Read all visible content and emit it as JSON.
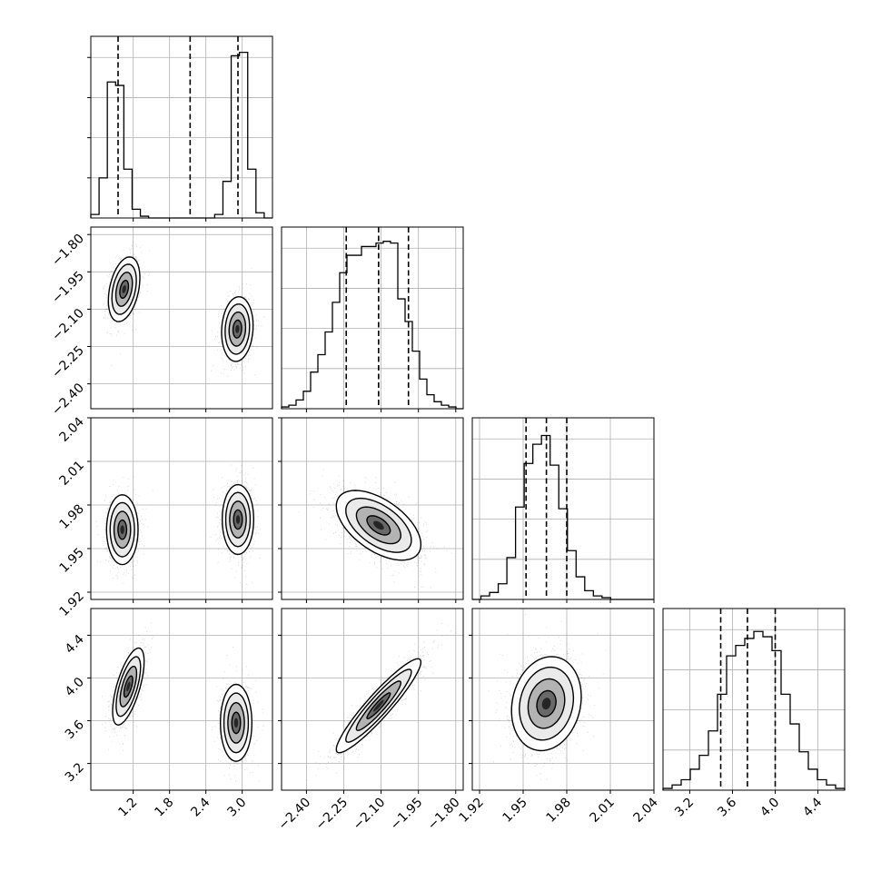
{
  "chart_data": {
    "type": "corner",
    "parameters": [
      {
        "label": "",
        "range": [
          0.5,
          3.5
        ],
        "ticks": [
          "1.2",
          "1.8",
          "2.4",
          "3.0"
        ],
        "quantiles": [
          0.95,
          2.14,
          2.93
        ],
        "hist": [
          0.02,
          0.23,
          0.78,
          0.76,
          0.28,
          0.05,
          0.01,
          0.0,
          0.0,
          0.0,
          0.0,
          0.0,
          0.0,
          0.0,
          0.0,
          0.02,
          0.21,
          0.93,
          0.95,
          0.28,
          0.03,
          0.0
        ],
        "hist_max": 1.0
      },
      {
        "label": "",
        "range": [
          -2.5,
          -1.77
        ],
        "ticks": [
          "−2.40",
          "−2.25",
          "−2.10",
          "−1.95",
          "−1.80"
        ],
        "ticks_left": [
          "−1.80",
          "−1.95",
          "−2.10",
          "−2.25",
          "−2.40"
        ],
        "quantiles": [
          -2.24,
          -2.11,
          -1.99
        ],
        "hist": [
          0.01,
          0.02,
          0.05,
          0.1,
          0.21,
          0.31,
          0.44,
          0.61,
          0.78,
          0.88,
          0.88,
          0.93,
          0.93,
          0.95,
          0.96,
          0.95,
          0.63,
          0.5,
          0.33,
          0.17,
          0.08,
          0.04,
          0.02,
          0.01,
          0.0
        ],
        "hist_max": 1.0
      },
      {
        "label": "",
        "range": [
          1.915,
          2.04
        ],
        "ticks": [
          "1.92",
          "1.95",
          "1.98",
          "2.01",
          "2.04"
        ],
        "ticks_left": [
          "2.04",
          "2.01",
          "1.98",
          "1.95",
          "1.92"
        ],
        "quantiles": [
          1.952,
          1.966,
          1.98
        ],
        "hist": [
          0.0,
          0.02,
          0.04,
          0.09,
          0.24,
          0.53,
          0.78,
          0.89,
          0.94,
          0.77,
          0.52,
          0.28,
          0.13,
          0.05,
          0.02,
          0.01,
          0.0,
          0.0,
          0.0,
          0.0,
          0.0
        ],
        "hist_max": 1.0
      },
      {
        "label": "",
        "range": [
          2.95,
          4.65
        ],
        "ticks": [
          "3.2",
          "3.6",
          "4.0",
          "4.4"
        ],
        "ticks_left": [
          "4.4",
          "4.0",
          "3.6",
          "3.2"
        ],
        "quantiles": [
          3.49,
          3.74,
          4.0
        ],
        "hist": [
          0.01,
          0.03,
          0.06,
          0.12,
          0.2,
          0.34,
          0.55,
          0.77,
          0.83,
          0.87,
          0.91,
          0.88,
          0.8,
          0.55,
          0.38,
          0.22,
          0.12,
          0.06,
          0.03,
          0.01
        ],
        "hist_max": 1.0
      }
    ],
    "blobs": {
      "1_0": [
        {
          "cx": 1.05,
          "cy": -2.02,
          "sx": 0.13,
          "sy": 0.065,
          "rho": 0.35,
          "w": 0.5
        },
        {
          "cx": 2.92,
          "cy": -2.18,
          "sx": 0.13,
          "sy": 0.065,
          "rho": 0.1,
          "w": 0.5
        }
      ],
      "2_0": [
        {
          "cx": 1.02,
          "cy": 1.963,
          "sx": 0.13,
          "sy": 0.012,
          "rho": 0.0,
          "w": 0.5
        },
        {
          "cx": 2.93,
          "cy": 1.97,
          "sx": 0.13,
          "sy": 0.012,
          "rho": 0.0,
          "w": 0.5
        }
      ],
      "2_1": [
        {
          "cx": -2.11,
          "cy": 1.966,
          "sx": 0.085,
          "sy": 0.012,
          "rho": -0.55,
          "w": 1.0
        }
      ],
      "3_0": [
        {
          "cx": 1.12,
          "cy": 3.92,
          "sx": 0.13,
          "sy": 0.18,
          "rho": 0.65,
          "w": 0.5
        },
        {
          "cx": 2.9,
          "cy": 3.58,
          "sx": 0.13,
          "sy": 0.18,
          "rho": 0.0,
          "w": 0.5
        }
      ],
      "3_1": [
        {
          "cx": -2.11,
          "cy": 3.74,
          "sx": 0.085,
          "sy": 0.22,
          "rho": 0.93,
          "w": 1.0
        }
      ],
      "3_2": [
        {
          "cx": 1.966,
          "cy": 3.76,
          "sx": 0.012,
          "sy": 0.22,
          "rho": 0.15,
          "w": 1.0
        }
      ]
    }
  }
}
